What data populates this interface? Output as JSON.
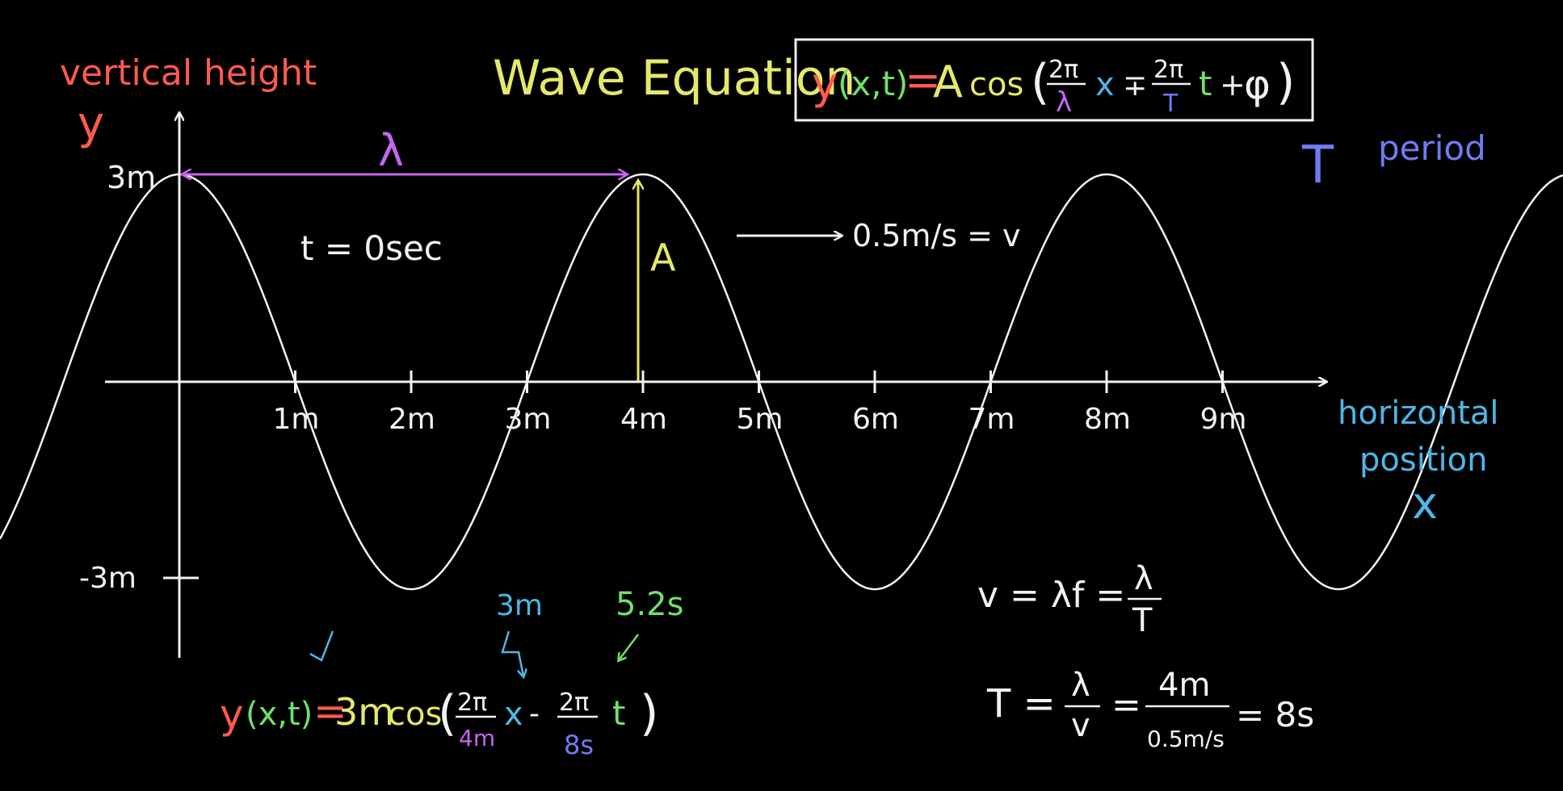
{
  "colors": {
    "background": "#000000",
    "chalk_white": "#f2f2f2",
    "red": "#ff5a4e",
    "yellow": "#e6e86a",
    "green": "#6fe06a",
    "blue": "#4fb6e8",
    "purple": "#c466ee",
    "indigo": "#6f7cf2"
  },
  "labels": {
    "y_axis_title": "vertical height",
    "y_axis_symbol": "y",
    "x_axis_title_line1": "horizontal",
    "x_axis_title_line2": "position",
    "x_axis_symbol": "x",
    "title": "Wave Equation",
    "lambda": "λ",
    "time_note": "t = 0sec",
    "amplitude": "A",
    "speed_note": "0.5m/s = v",
    "period_symbol": "T",
    "period_word": "period",
    "y_max": "3m",
    "y_min": "-3m",
    "x_ticks": [
      "1m",
      "2m",
      "3m",
      "4m",
      "5m",
      "6m",
      "7m",
      "8m",
      "9m"
    ],
    "annot_3m": "3m",
    "annot_52s": "5.2s"
  },
  "general_eq": {
    "lhs_y": "y",
    "lhs_vars": "(x,t)",
    "eq_sign": "=",
    "amp": "A",
    "cos": "cos",
    "open": "(",
    "num1": "2π",
    "den1": "λ",
    "x": "x",
    "pm": "∓",
    "num2": "2π",
    "den2": "T",
    "t": "t",
    "plus": "+",
    "phi": "φ",
    "close": ")"
  },
  "specific_eq": {
    "lhs_y": "y",
    "lhs_vars": "(x,t)",
    "eq_sign": "=",
    "amp": "3m",
    "cos": "cos",
    "open": "(",
    "num1": "2π",
    "den1": "4m",
    "x": "x",
    "minus": "-",
    "num2": "2π",
    "den2": "8s",
    "t": "t",
    "close": ")"
  },
  "velocity_eq": {
    "lhs": "v = λf =",
    "num": "λ",
    "den": "T"
  },
  "period_eq": {
    "lhs": "T =",
    "num1": "λ",
    "den1": "v",
    "eq2": "=",
    "num2": "4m",
    "den2": "0.5m/s",
    "result": "= 8s"
  }
}
